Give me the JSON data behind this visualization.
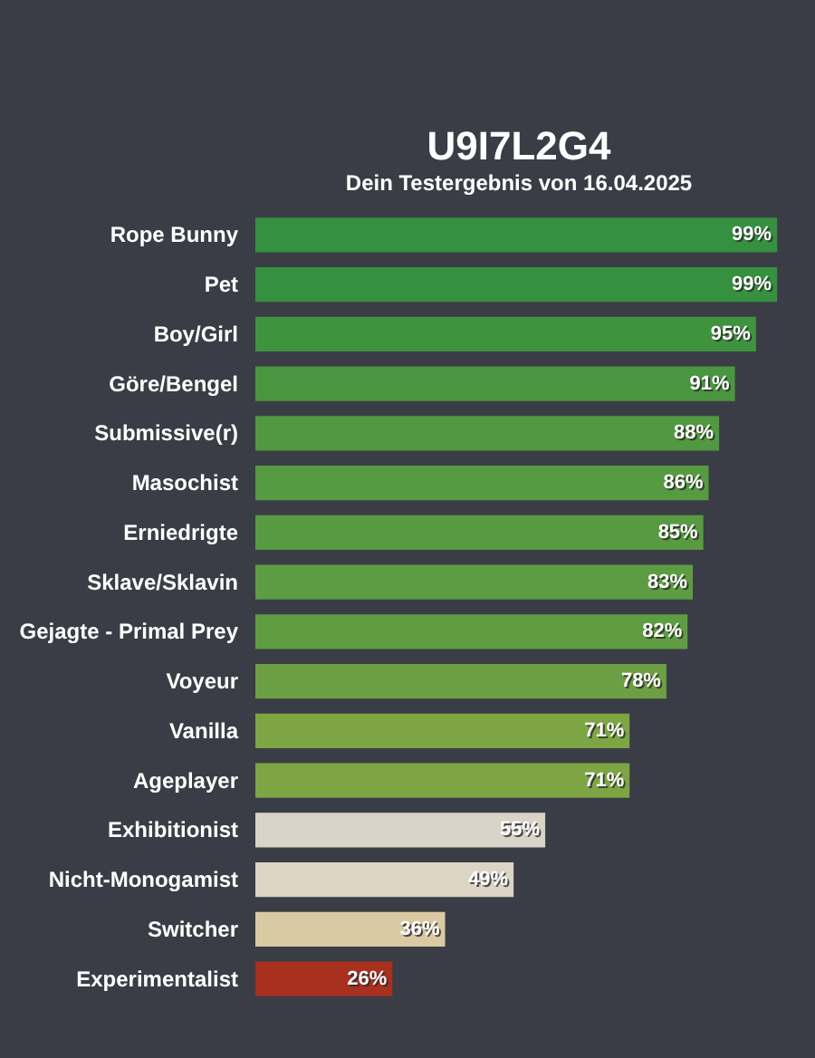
{
  "chart_data": {
    "type": "bar",
    "orientation": "horizontal",
    "title": "U9I7L2G4",
    "subtitle": "Dein Testergebnis von 16.04.2025",
    "categories": [
      "Rope Bunny",
      "Pet",
      "Boy/Girl",
      "Göre/Bengel",
      "Submissive(r)",
      "Masochist",
      "Erniedrigte",
      "Sklave/Sklavin",
      "Gejagte - Primal Prey",
      "Voyeur",
      "Vanilla",
      "Ageplayer",
      "Exhibitionist",
      "Nicht-Monogamist",
      "Switcher",
      "Experimentalist"
    ],
    "values": [
      99,
      99,
      95,
      91,
      88,
      86,
      85,
      83,
      82,
      78,
      71,
      71,
      55,
      49,
      36,
      26
    ],
    "value_labels": [
      "99%",
      "99%",
      "95%",
      "91%",
      "88%",
      "86%",
      "85%",
      "83%",
      "82%",
      "78%",
      "71%",
      "71%",
      "55%",
      "49%",
      "36%",
      "26%"
    ],
    "colors": [
      "#35903f",
      "#35903f",
      "#3f933f",
      "#4a9640",
      "#519841",
      "#569a41",
      "#589a41",
      "#5d9c42",
      "#609d42",
      "#6c9f43",
      "#7da544",
      "#7da544",
      "#d9d3c8",
      "#dcd4c4",
      "#d9caa4",
      "#a8301f"
    ],
    "xlim": [
      0,
      100
    ],
    "tick_labels": "y"
  }
}
